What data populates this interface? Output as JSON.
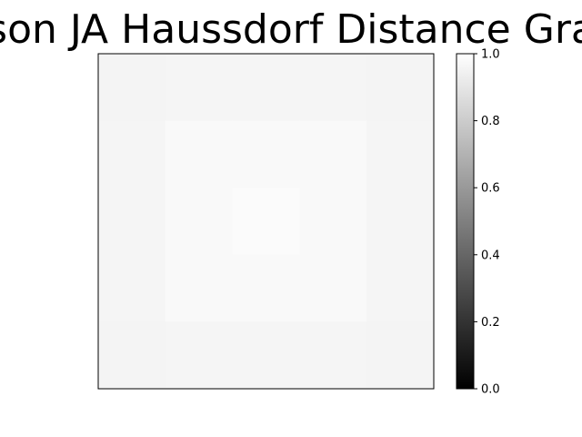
{
  "chart_data": {
    "type": "heatmap",
    "title": "son JA Haussdorf Distance Gra",
    "xlabel": "",
    "ylabel": "",
    "grid": false,
    "rows": 5,
    "cols": 5,
    "values": [
      [
        0.955,
        0.96,
        0.96,
        0.96,
        0.955
      ],
      [
        0.96,
        0.975,
        0.975,
        0.975,
        0.96
      ],
      [
        0.96,
        0.975,
        0.985,
        0.975,
        0.96
      ],
      [
        0.96,
        0.975,
        0.975,
        0.975,
        0.96
      ],
      [
        0.955,
        0.96,
        0.96,
        0.96,
        0.955
      ]
    ],
    "colormap": "gray",
    "vmin": 0.0,
    "vmax": 1.0,
    "colorbar_ticks": [
      "0.0",
      "0.2",
      "0.4",
      "0.6",
      "0.8",
      "1.0"
    ],
    "colorbar_tick_values": [
      0.0,
      0.2,
      0.4,
      0.6,
      0.8,
      1.0
    ]
  }
}
